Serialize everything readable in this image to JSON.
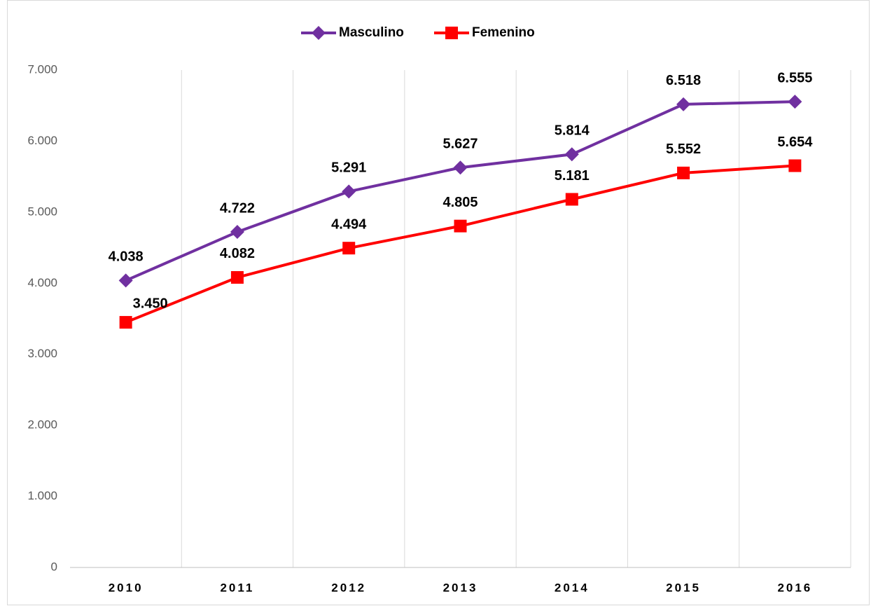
{
  "chart_data": {
    "type": "line",
    "categories": [
      "2010",
      "2011",
      "2012",
      "2013",
      "2014",
      "2015",
      "2016"
    ],
    "series": [
      {
        "name": "Masculino",
        "color": "#7030a0",
        "marker": "diamond",
        "values": [
          4038,
          4722,
          5291,
          5627,
          5814,
          6518,
          6555
        ],
        "value_labels": [
          "4.038",
          "4.722",
          "5.291",
          "5.627",
          "5.814",
          "6.518",
          "6.555"
        ]
      },
      {
        "name": "Femenino",
        "color": "#ff0000",
        "marker": "square",
        "values": [
          3450,
          4082,
          4494,
          4805,
          5181,
          5552,
          5654
        ],
        "value_labels": [
          "3.450",
          "4.082",
          "4.494",
          "4.805",
          "5.181",
          "5.552",
          "5.654"
        ]
      }
    ],
    "ylim": [
      0,
      7000
    ],
    "yticks": [
      0,
      {
        "value": 1000,
        "label": "1.000"
      },
      {
        "value": 2000,
        "label": "2.000"
      },
      {
        "value": 3000,
        "label": "3.000"
      },
      {
        "value": 4000,
        "label": "4.000"
      },
      {
        "value": 5000,
        "label": "5.000"
      },
      {
        "value": 6000,
        "label": "6.000"
      },
      {
        "value": 7000,
        "label": "7.000"
      }
    ],
    "legend": "top"
  }
}
